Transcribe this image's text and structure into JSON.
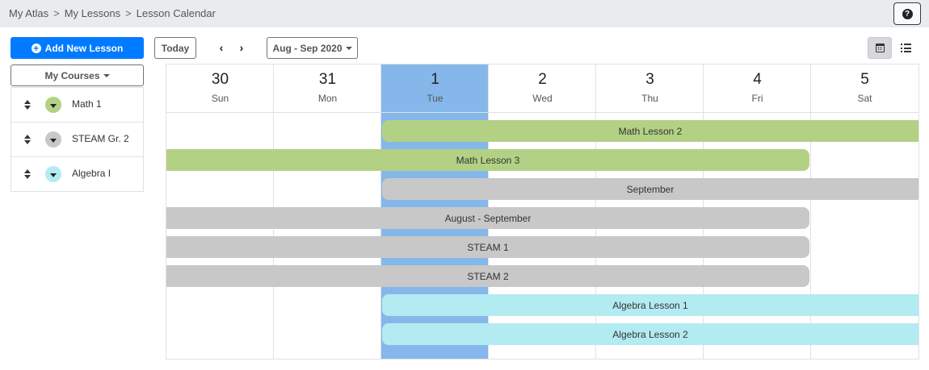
{
  "breadcrumb": {
    "items": [
      "My Atlas",
      "My Lessons",
      "Lesson Calendar"
    ],
    "separator": ">"
  },
  "help": {
    "icon": "question-circle-icon",
    "glyph": "?"
  },
  "sidebar": {
    "add_lesson_label": "Add New Lesson",
    "my_courses_label": "My Courses",
    "courses": [
      {
        "name": "Math 1",
        "color": "#b3d185"
      },
      {
        "name": "STEAM Gr. 2",
        "color": "#c8c8c8"
      },
      {
        "name": "Algebra I",
        "color": "#b3ebf2"
      }
    ]
  },
  "toolbar": {
    "today_label": "Today",
    "prev_glyph": "‹",
    "next_glyph": "›",
    "range_label": "Aug - Sep 2020",
    "views": [
      "calendar-view",
      "list-view"
    ],
    "active_view": "calendar-view"
  },
  "calendar": {
    "today_index": 2,
    "today_color": "#85b7ea",
    "days": [
      {
        "num": "30",
        "name": "Sun"
      },
      {
        "num": "31",
        "name": "Mon"
      },
      {
        "num": "1",
        "name": "Tue"
      },
      {
        "num": "2",
        "name": "Wed"
      },
      {
        "num": "3",
        "name": "Thu"
      },
      {
        "num": "4",
        "name": "Fri"
      },
      {
        "num": "5",
        "name": "Sat"
      }
    ],
    "events": [
      {
        "title": "Math Lesson 2",
        "start_day": 2,
        "end_day": 6,
        "continues_after": true,
        "color": "#b3d185"
      },
      {
        "title": "Math Lesson 3",
        "start_day": 0,
        "end_day": 5,
        "continues_before": true,
        "color": "#b3d185"
      },
      {
        "title": "September",
        "start_day": 2,
        "end_day": 6,
        "continues_after": true,
        "color": "#c8c8c8"
      },
      {
        "title": "August - September",
        "start_day": 0,
        "end_day": 5,
        "continues_before": true,
        "color": "#c8c8c8"
      },
      {
        "title": "STEAM 1",
        "start_day": 0,
        "end_day": 5,
        "continues_before": true,
        "color": "#c8c8c8"
      },
      {
        "title": "STEAM 2",
        "start_day": 0,
        "end_day": 5,
        "continues_before": true,
        "color": "#c8c8c8"
      },
      {
        "title": "Algebra Lesson 1",
        "start_day": 2,
        "end_day": 6,
        "continues_after": true,
        "color": "#b3ebf2"
      },
      {
        "title": "Algebra Lesson 2",
        "start_day": 2,
        "end_day": 6,
        "continues_after": true,
        "color": "#b3ebf2"
      }
    ]
  }
}
